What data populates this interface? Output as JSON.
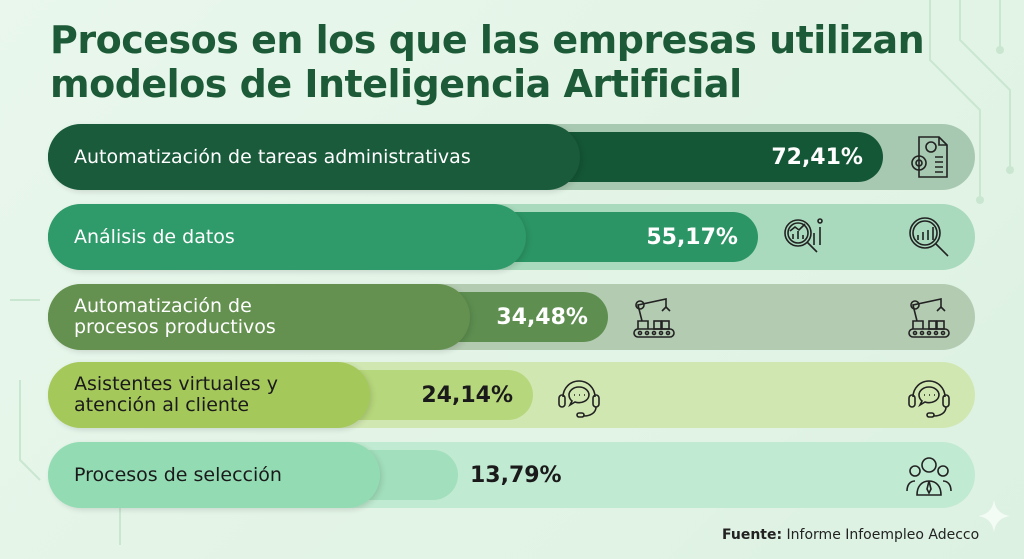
{
  "chart_data": {
    "type": "bar",
    "orientation": "horizontal",
    "title": "Procesos en los que las empresas utilizan modelos de Inteligencia Artificial",
    "categories": [
      "Automatización de tareas administrativas",
      "Análisis de datos",
      "Automatización de procesos productivos",
      "Asistentes virtuales y atención al cliente",
      "Procesos de selección"
    ],
    "values": [
      72.41,
      55.17,
      34.48,
      24.14,
      13.79
    ],
    "value_labels": [
      "72,41%",
      "55,17%",
      "34,48%",
      "24,14%",
      "13,79%"
    ],
    "unit": "%",
    "xlim": [
      0,
      100
    ]
  },
  "title_lines": [
    "Procesos en los que las empresas utilizan",
    "modelos de Inteligencia Artificial"
  ],
  "rows": [
    {
      "label_lines": [
        "Automatización de tareas administrativas"
      ],
      "icons": [
        "document-gears-icon"
      ],
      "colors": {
        "track": "#a8c9b1",
        "bar": "#145736",
        "label": "#1a5b3b",
        "text": "#ffffff"
      }
    },
    {
      "label_lines": [
        "Análisis de datos"
      ],
      "icons": [
        "data-analysis-icon",
        "magnifier-chart-icon"
      ],
      "colors": {
        "track": "#a9dabd",
        "bar": "#2b9565",
        "label": "#2f9a6a",
        "text": "#ffffff"
      }
    },
    {
      "label_lines": [
        "Automatización de",
        "procesos productivos"
      ],
      "icons": [
        "robot-arm-icon",
        "robot-arm-icon"
      ],
      "colors": {
        "track": "#b3cbb1",
        "bar": "#5e8f50",
        "label": "#64914f",
        "text": "#ffffff"
      }
    },
    {
      "label_lines": [
        "Asistentes virtuales y",
        "atención al cliente"
      ],
      "icons": [
        "headset-icon",
        "headset-icon"
      ],
      "colors": {
        "track": "#d1e7b2",
        "bar": "#b7d77c",
        "label": "#a5c85b",
        "text": "#1a1a1a"
      }
    },
    {
      "label_lines": [
        "Procesos de selección"
      ],
      "icons": [
        "candidates-icon"
      ],
      "colors": {
        "track": "#c1ead2",
        "bar": "#a2dfbc",
        "label": "#93dcb3",
        "text": "#1a1a1a"
      }
    }
  ],
  "footer": {
    "prefix": "Fuente:",
    "text": " Informe Infoempleo Adecco"
  }
}
